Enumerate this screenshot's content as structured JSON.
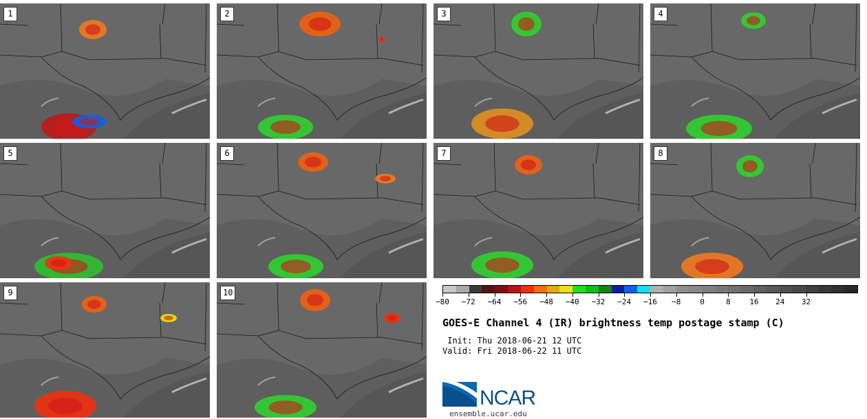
{
  "panels": [
    {
      "label": "1"
    },
    {
      "label": "2"
    },
    {
      "label": "3"
    },
    {
      "label": "4"
    },
    {
      "label": "5"
    },
    {
      "label": "6"
    },
    {
      "label": "7"
    },
    {
      "label": "8"
    },
    {
      "label": "9"
    },
    {
      "label": "10"
    }
  ],
  "colorbar": {
    "tick_labels": [
      "−80",
      "−72",
      "−64",
      "−56",
      "−48",
      "−40",
      "−32",
      "−24",
      "−16",
      "−8",
      "0",
      "8",
      "16",
      "24",
      "32"
    ],
    "colors": [
      "#c8c8c8",
      "#a8a8a8",
      "#3c3c3c",
      "#5a1010",
      "#801010",
      "#c01010",
      "#f03010",
      "#f07010",
      "#e0b000",
      "#f0e010",
      "#20e020",
      "#10c010",
      "#108810",
      "#0820a0",
      "#1060e0",
      "#10e0f0",
      "#b0b0b0",
      "#a0a0a0",
      "#909090",
      "#888888",
      "#808080",
      "#787878",
      "#707070",
      "#686868",
      "#606060",
      "#585858",
      "#505050",
      "#484848",
      "#404040",
      "#383838",
      "#303030",
      "#282828"
    ]
  },
  "title": "GOES-E Channel 4 (IR) brightness temp postage stamp (C)",
  "init_line": " Init: Thu 2018-06-21 12 UTC",
  "valid_line": "Valid: Fri 2018-06-22 11 UTC",
  "logo_text": "NCAR",
  "website": "ensemble.ucar.edu",
  "colors": {
    "background_gray": "#6a6a6a",
    "ncar_blue": "#0a4f8d"
  }
}
